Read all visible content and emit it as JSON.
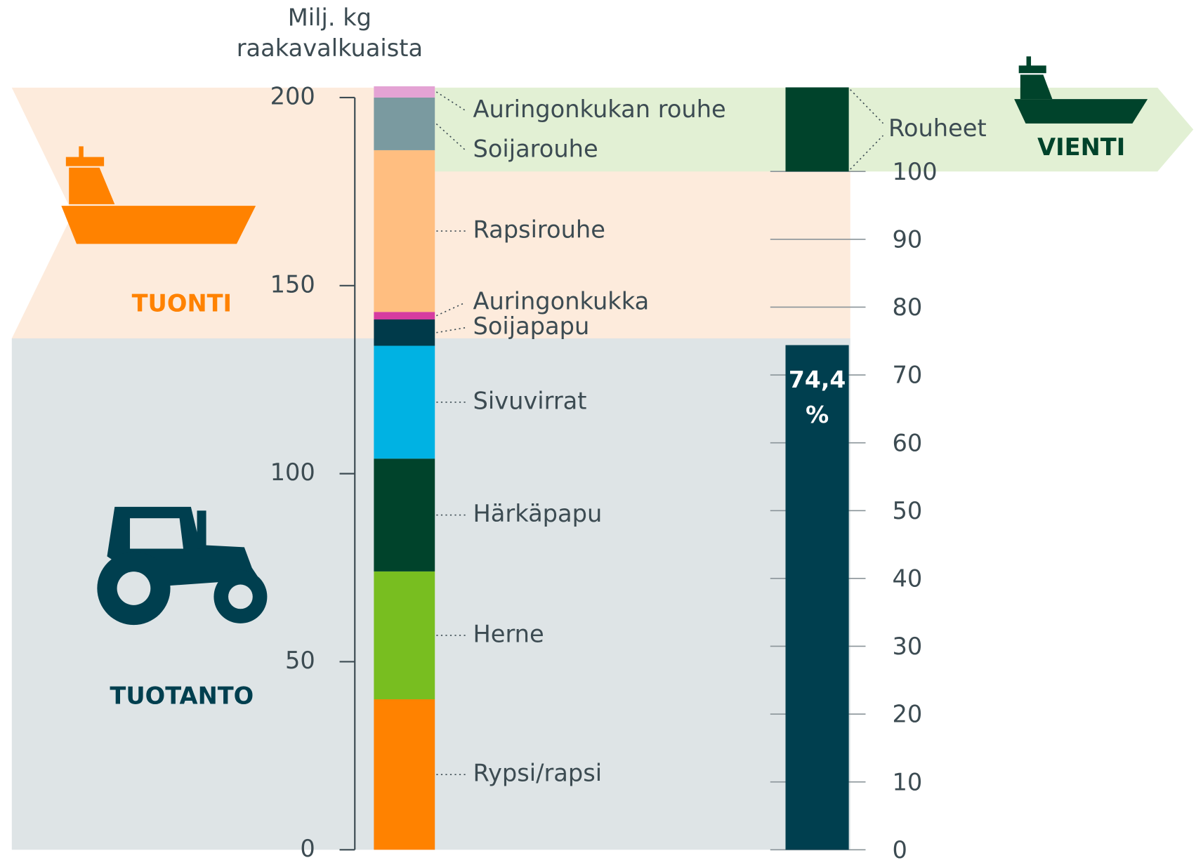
{
  "chart_data": {
    "type": "stacked-bar",
    "ylabel": [
      "Milj. kg",
      "raakavalkuaista"
    ],
    "ylim": [
      0,
      200
    ],
    "yticks": [
      0,
      50,
      100,
      150,
      200
    ],
    "y2lim": [
      0,
      100
    ],
    "y2ticks": [
      0,
      10,
      20,
      30,
      40,
      50,
      60,
      70,
      80,
      90,
      100
    ],
    "regions": [
      "TUONTI",
      "TUOTANTO",
      "VIENTI"
    ],
    "series": [
      {
        "name": "Rypsi/rapsi",
        "color": "#ff8200",
        "values": [
          40
        ]
      },
      {
        "name": "Herne",
        "color": "#78be20",
        "values": [
          34
        ]
      },
      {
        "name": "Härkäpapu",
        "color": "#00432b",
        "values": [
          30
        ]
      },
      {
        "name": "Sivuvirrat",
        "color": "#00b2e3",
        "values": [
          30
        ]
      },
      {
        "name": "Soijapapu",
        "color": "#003a4a",
        "values": [
          7
        ]
      },
      {
        "name": "Auringonkukka",
        "color": "#d63ca0",
        "values": [
          2
        ]
      },
      {
        "name": "Rapsirouhe",
        "color": "#ffbe80",
        "values": [
          43
        ]
      },
      {
        "name": "Soijarouhe",
        "color": "#7a9aa0",
        "values": [
          14
        ]
      },
      {
        "name": "Auringonkukan rouhe",
        "color": "#e4a3d4",
        "values": [
          3
        ]
      },
      {
        "color": "#003f4f",
        "values": [
          74.4
        ],
        "value_labels": [
          "74,4 %"
        ],
        "axis": "y2"
      },
      {
        "name": "Rouheet",
        "color": "#00432b",
        "values": [
          12.4
        ],
        "axis": "y2"
      }
    ]
  }
}
